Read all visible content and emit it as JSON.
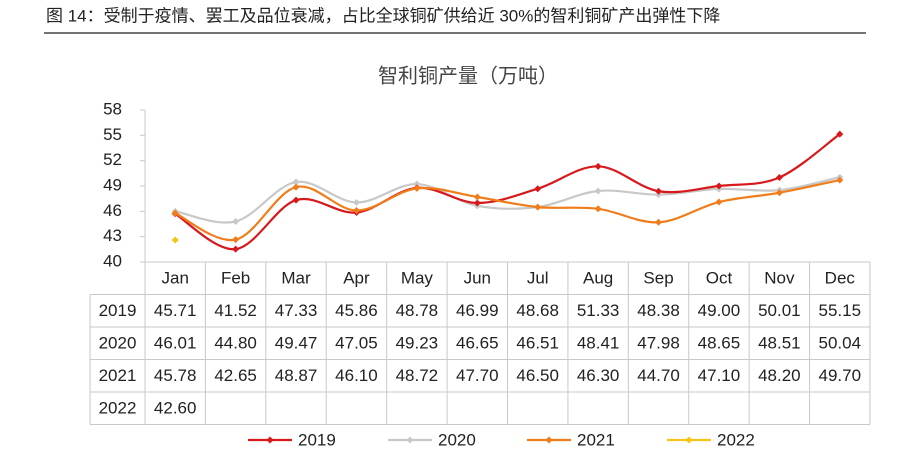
{
  "chart_data": {
    "type": "line",
    "caption": "图 14：受制于疫情、罢工及品位衰减，占比全球铜矿供给近 30%的智利铜矿产出弹性下降",
    "title": "智利铜产量（万吨）",
    "categories": [
      "Jan",
      "Feb",
      "Mar",
      "Apr",
      "May",
      "Jun",
      "Jul",
      "Aug",
      "Sep",
      "Oct",
      "Nov",
      "Dec"
    ],
    "ylim": [
      40,
      58
    ],
    "yticks": [
      40,
      43,
      46,
      49,
      52,
      55,
      58
    ],
    "series": [
      {
        "name": "2019",
        "color": "#d7191c",
        "values": [
          45.71,
          41.52,
          47.33,
          45.86,
          48.78,
          46.99,
          48.68,
          51.33,
          48.38,
          49.0,
          50.01,
          55.15
        ],
        "value_labels": [
          "45.71",
          "41.52",
          "47.33",
          "45.86",
          "48.78",
          "46.99",
          "48.68",
          "51.33",
          "48.38",
          "49.00",
          "50.01",
          "55.15"
        ]
      },
      {
        "name": "2020",
        "color": "#c8c8c8",
        "values": [
          46.01,
          44.8,
          49.47,
          47.05,
          49.23,
          46.65,
          46.51,
          48.41,
          47.98,
          48.65,
          48.51,
          50.04
        ],
        "value_labels": [
          "46.01",
          "44.80",
          "49.47",
          "47.05",
          "49.23",
          "46.65",
          "46.51",
          "48.41",
          "47.98",
          "48.65",
          "48.51",
          "50.04"
        ]
      },
      {
        "name": "2021",
        "color": "#f07d1b",
        "values": [
          45.78,
          42.65,
          48.87,
          46.1,
          48.72,
          47.7,
          46.5,
          46.3,
          44.7,
          47.1,
          48.2,
          49.7
        ],
        "value_labels": [
          "45.78",
          "42.65",
          "48.87",
          "46.10",
          "48.72",
          "47.70",
          "46.50",
          "46.30",
          "44.70",
          "47.10",
          "48.20",
          "49.70"
        ]
      },
      {
        "name": "2022",
        "color": "#f5c518",
        "values": [
          42.6,
          null,
          null,
          null,
          null,
          null,
          null,
          null,
          null,
          null,
          null,
          null
        ],
        "value_labels": [
          "42.60",
          null,
          null,
          null,
          null,
          null,
          null,
          null,
          null,
          null,
          null,
          null
        ]
      }
    ]
  }
}
